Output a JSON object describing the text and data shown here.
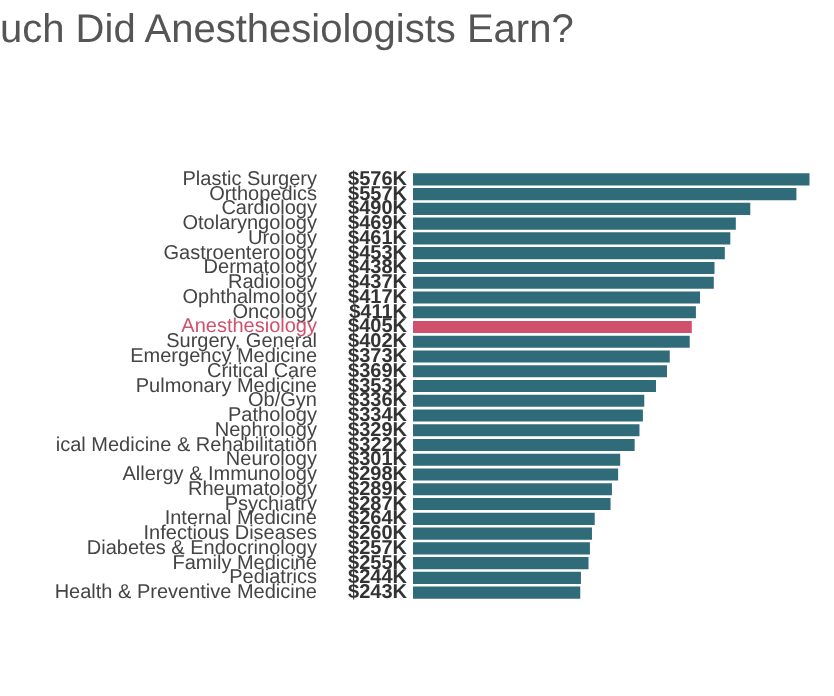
{
  "chart_data": {
    "type": "bar",
    "orientation": "horizontal",
    "title": "uch Did Anesthesiologists Earn?",
    "categories": [
      "Plastic Surgery",
      "Orthopedics",
      "Cardiology",
      "Otolaryngology",
      "Urology",
      "Gastroenterology",
      "Dermatology",
      "Radiology",
      "Ophthalmology",
      "Oncology",
      "Anesthesiology",
      "Surgery, General",
      "Emergency Medicine",
      "Critical Care",
      "Pulmonary Medicine",
      "Ob/Gyn",
      "Pathology",
      "Nephrology",
      "ical Medicine & Rehabilitation",
      "Neurology",
      "Allergy & Immunology",
      "Rheumatology",
      "Psychiatry",
      "Internal Medicine",
      "Infectious Diseases",
      "Diabetes & Endocrinology",
      "Family Medicine",
      "Pediatrics",
      "Health & Preventive Medicine"
    ],
    "values": [
      576,
      557,
      490,
      469,
      461,
      453,
      438,
      437,
      417,
      411,
      405,
      402,
      373,
      369,
      353,
      336,
      334,
      329,
      322,
      301,
      298,
      289,
      287,
      264,
      260,
      257,
      255,
      244,
      243
    ],
    "value_labels": [
      "$576K",
      "$557K",
      "$490K",
      "$469K",
      "$461K",
      "$453K",
      "$438K",
      "$437K",
      "$417K",
      "$411K",
      "$405K",
      "$402K",
      "$373K",
      "$369K",
      "$353K",
      "$336K",
      "$334K",
      "$329K",
      "$322K",
      "$301K",
      "$298K",
      "$289K",
      "$287K",
      "$264K",
      "$260K",
      "$257K",
      "$255K",
      "$244K",
      "$243K"
    ],
    "color": "#2f6b78",
    "colors": [
      "#2f6b78",
      "#2f6b78",
      "#2f6b78",
      "#2f6b78",
      "#2f6b78",
      "#2f6b78",
      "#2f6b78",
      "#2f6b78",
      "#2f6b78",
      "#2f6b78",
      "#d1506e",
      "#2f6b78",
      "#2f6b78",
      "#2f6b78",
      "#2f6b78",
      "#2f6b78",
      "#2f6b78",
      "#2f6b78",
      "#2f6b78",
      "#2f6b78",
      "#2f6b78",
      "#2f6b78",
      "#2f6b78",
      "#2f6b78",
      "#2f6b78",
      "#2f6b78",
      "#2f6b78",
      "#2f6b78",
      "#2f6b78"
    ],
    "legend": false
  }
}
